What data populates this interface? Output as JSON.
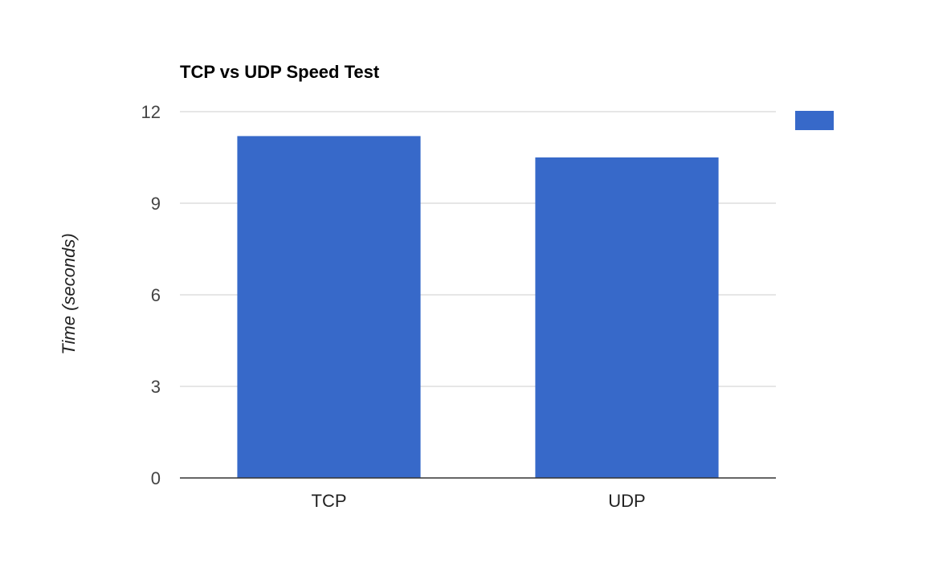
{
  "chart_data": {
    "type": "bar",
    "title": "TCP vs UDP Speed Test",
    "xlabel": "",
    "ylabel": "Time (seconds)",
    "categories": [
      "TCP",
      "UDP"
    ],
    "values": [
      11.2,
      10.5
    ],
    "ylim": [
      0,
      12
    ],
    "yticks": [
      "0",
      "3",
      "6",
      "9",
      "12"
    ],
    "grid": true,
    "legend_position": "right",
    "colors": {
      "bar": "#3769c9",
      "grid": "#cccccc",
      "axis": "#333333"
    }
  }
}
